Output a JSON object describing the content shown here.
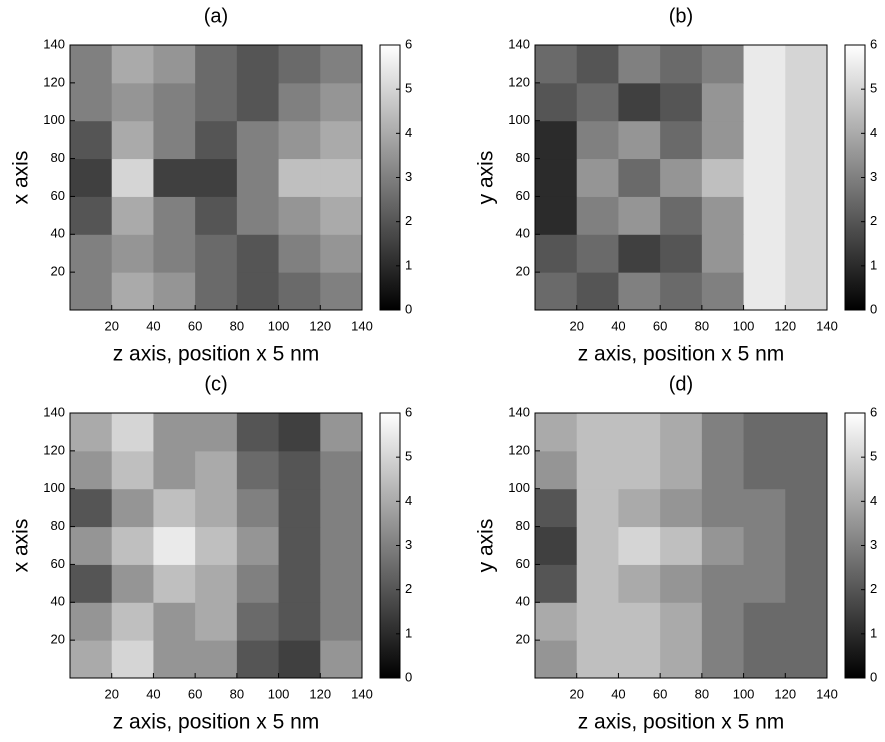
{
  "chart_data": [
    {
      "type": "heatmap",
      "title": "(a)",
      "x_label": "z axis, position x 5 nm",
      "y_label": "x axis",
      "x": [
        10,
        30,
        50,
        70,
        90,
        110,
        130
      ],
      "y": [
        10,
        30,
        50,
        70,
        90,
        110,
        130
      ],
      "z": [
        [
          3,
          4,
          3.5,
          2.5,
          2,
          2.5,
          3
        ],
        [
          3,
          3.5,
          3,
          2.5,
          2,
          3,
          3.5
        ],
        [
          2,
          4,
          3,
          2,
          3,
          3.5,
          4
        ],
        [
          1.5,
          5,
          1.5,
          1.5,
          3,
          4.5,
          4.5
        ],
        [
          2,
          4,
          3,
          2,
          3,
          3.5,
          4
        ],
        [
          3,
          3.5,
          3,
          2.5,
          2,
          3,
          3.5
        ],
        [
          3,
          4,
          3.5,
          2.5,
          2,
          2.5,
          3
        ]
      ],
      "xlim": [
        0,
        140
      ],
      "ylim": [
        0,
        140
      ],
      "xticks": [
        20,
        40,
        60,
        80,
        100,
        120,
        140
      ],
      "yticks": [
        20,
        40,
        60,
        80,
        100,
        120,
        140
      ],
      "colormap": "gray",
      "clim": [
        0,
        6
      ],
      "cticks": [
        0,
        1,
        2,
        3,
        4,
        5,
        6
      ]
    },
    {
      "type": "heatmap",
      "title": "(b)",
      "x_label": "z axis, position x 5 nm",
      "y_label": "y axis",
      "x": [
        10,
        30,
        50,
        70,
        90,
        110,
        130
      ],
      "y": [
        10,
        30,
        50,
        70,
        90,
        110,
        130
      ],
      "z": [
        [
          2.5,
          2,
          3,
          2.5,
          3,
          5.5,
          5
        ],
        [
          2,
          2.5,
          1.5,
          2,
          3.5,
          5.5,
          5
        ],
        [
          1,
          3,
          3.5,
          2.5,
          3.5,
          5.5,
          5
        ],
        [
          1,
          3.5,
          2.5,
          3.5,
          4.5,
          5.5,
          5
        ],
        [
          1,
          3,
          3.5,
          2.5,
          3.5,
          5.5,
          5
        ],
        [
          2,
          2.5,
          1.5,
          2,
          3.5,
          5.5,
          5
        ],
        [
          2.5,
          2,
          3,
          2.5,
          3,
          5.5,
          5
        ]
      ],
      "xlim": [
        0,
        140
      ],
      "ylim": [
        0,
        140
      ],
      "xticks": [
        20,
        40,
        60,
        80,
        100,
        120,
        140
      ],
      "yticks": [
        20,
        40,
        60,
        80,
        100,
        120,
        140
      ],
      "colormap": "gray",
      "clim": [
        0,
        6
      ],
      "cticks": [
        0,
        1,
        2,
        3,
        4,
        5,
        6
      ]
    },
    {
      "type": "heatmap",
      "title": "(c)",
      "x_label": "z axis, position x 5 nm",
      "y_label": "x axis",
      "x": [
        10,
        30,
        50,
        70,
        90,
        110,
        130
      ],
      "y": [
        10,
        30,
        50,
        70,
        90,
        110,
        130
      ],
      "z": [
        [
          4,
          5,
          3.5,
          3.5,
          2,
          1.5,
          3.5
        ],
        [
          3.5,
          4.5,
          3.5,
          4,
          2.5,
          2,
          3
        ],
        [
          2,
          3.5,
          4.5,
          4,
          3,
          2,
          3
        ],
        [
          3.5,
          4.5,
          5.5,
          4.5,
          3.5,
          2,
          3
        ],
        [
          2,
          3.5,
          4.5,
          4,
          3,
          2,
          3
        ],
        [
          3.5,
          4.5,
          3.5,
          4,
          2.5,
          2,
          3
        ],
        [
          4,
          5,
          3.5,
          3.5,
          2,
          1.5,
          3.5
        ]
      ],
      "xlim": [
        0,
        140
      ],
      "ylim": [
        0,
        140
      ],
      "xticks": [
        20,
        40,
        60,
        80,
        100,
        120,
        140
      ],
      "yticks": [
        20,
        40,
        60,
        80,
        100,
        120,
        140
      ],
      "colormap": "gray",
      "clim": [
        0,
        6
      ],
      "cticks": [
        0,
        1,
        2,
        3,
        4,
        5,
        6
      ]
    },
    {
      "type": "heatmap",
      "title": "(d)",
      "x_label": "z axis, position x 5 nm",
      "y_label": "y axis",
      "x": [
        10,
        30,
        50,
        70,
        90,
        110,
        130
      ],
      "y": [
        10,
        30,
        50,
        70,
        90,
        110,
        130
      ],
      "z": [
        [
          3.5,
          4.5,
          4.5,
          4,
          3,
          2.5,
          2.5
        ],
        [
          4,
          4.5,
          4.5,
          4,
          3,
          2.5,
          2.5
        ],
        [
          2,
          4.5,
          4,
          3.5,
          3,
          3,
          2.5
        ],
        [
          1.5,
          4.5,
          5,
          4.5,
          3.5,
          3,
          2.5
        ],
        [
          2,
          4.5,
          4,
          3.5,
          3,
          3,
          2.5
        ],
        [
          3.5,
          4.5,
          4.5,
          4,
          3,
          2.5,
          2.5
        ],
        [
          4,
          4.5,
          4.5,
          4,
          3,
          2.5,
          2.5
        ]
      ],
      "xlim": [
        0,
        140
      ],
      "ylim": [
        0,
        140
      ],
      "xticks": [
        20,
        40,
        60,
        80,
        100,
        120,
        140
      ],
      "yticks": [
        20,
        40,
        60,
        80,
        100,
        120,
        140
      ],
      "colormap": "gray",
      "clim": [
        0,
        6
      ],
      "cticks": [
        0,
        1,
        2,
        3,
        4,
        5,
        6
      ]
    }
  ]
}
